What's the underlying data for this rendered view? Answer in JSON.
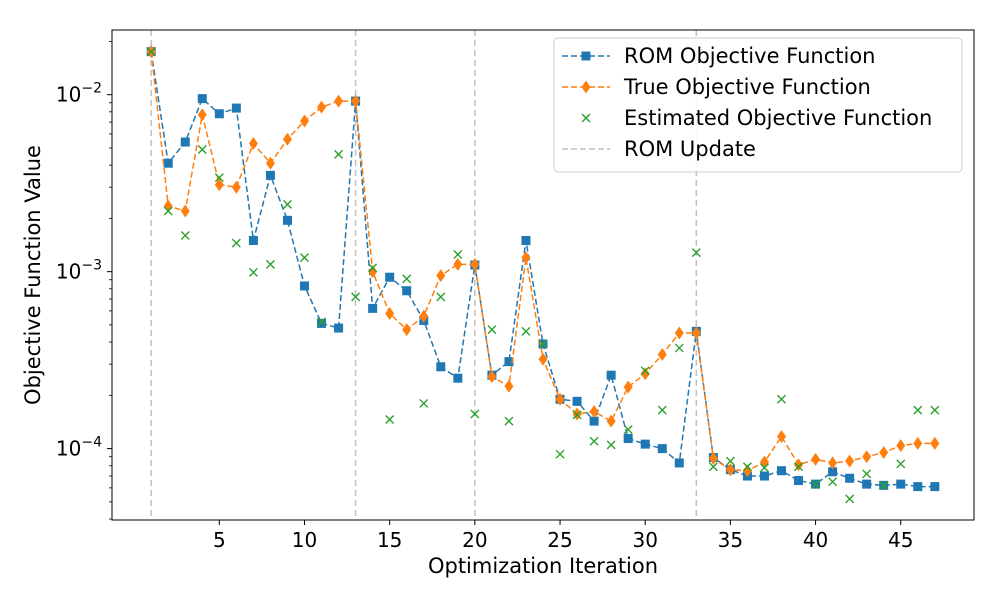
{
  "chart_data": {
    "type": "line",
    "title": "",
    "xlabel": "Optimization Iteration",
    "ylabel": "Objective Function Value",
    "yscale": "log",
    "xlim": [
      -1.3,
      49.3
    ],
    "ylim": [
      3.95e-05,
      0.0232
    ],
    "xticks": [
      5,
      10,
      15,
      20,
      25,
      30,
      35,
      40,
      45
    ],
    "xtick_labels": [
      "5",
      "10",
      "15",
      "20",
      "25",
      "30",
      "35",
      "40",
      "45"
    ],
    "yticks": [
      0.01,
      0.001,
      0.0001
    ],
    "ytick_labels": [
      {
        "base": "10",
        "exp": "−2"
      },
      {
        "base": "10",
        "exp": "−3"
      },
      {
        "base": "10",
        "exp": "−4"
      }
    ],
    "legend_position": "top-right",
    "colors": {
      "rom": "#1f77b4",
      "true": "#ff7f0e",
      "estimated": "#2ca02c",
      "update": "#c0c0c0"
    },
    "series": [
      {
        "name": "ROM Objective Function",
        "style": "dashed-line-square",
        "x": [
          1,
          2,
          3,
          4,
          5,
          6,
          7,
          8,
          9,
          10,
          11,
          12,
          13,
          14,
          15,
          16,
          17,
          18,
          19,
          20,
          21,
          22,
          23,
          24,
          25,
          26,
          27,
          28,
          29,
          30,
          31,
          32,
          33,
          34,
          35,
          36,
          37,
          38,
          39,
          40,
          41,
          42,
          43,
          44,
          45,
          46,
          47
        ],
        "values": [
          0.0175,
          0.0041,
          0.0054,
          0.0095,
          0.0078,
          0.0084,
          0.0015,
          0.0035,
          0.00195,
          0.00083,
          0.00051,
          0.00048,
          0.0092,
          0.00062,
          0.00093,
          0.00078,
          0.00053,
          0.00029,
          0.00025,
          0.00109,
          0.00026,
          0.00031,
          0.0015,
          0.00039,
          0.00019,
          0.000185,
          0.000143,
          0.00026,
          0.000114,
          0.000106,
          0.0001,
          8.3e-05,
          0.00046,
          8.9e-05,
          7.6e-05,
          7e-05,
          7e-05,
          7.5e-05,
          6.6e-05,
          6.3e-05,
          7.4e-05,
          6.8e-05,
          6.3e-05,
          6.2e-05,
          6.3e-05,
          6.1e-05,
          6.1e-05
        ]
      },
      {
        "name": "True Objective Function",
        "style": "dashed-line-diamond",
        "x": [
          1,
          2,
          3,
          4,
          5,
          6,
          7,
          8,
          9,
          10,
          11,
          12,
          13,
          14,
          15,
          16,
          17,
          18,
          19,
          20,
          21,
          22,
          23,
          24,
          25,
          26,
          27,
          28,
          29,
          30,
          31,
          32,
          33,
          34,
          35,
          36,
          37,
          38,
          39,
          40,
          41,
          42,
          43,
          44,
          45,
          46,
          47
        ],
        "values": [
          0.0175,
          0.00235,
          0.0022,
          0.0077,
          0.0031,
          0.003,
          0.0053,
          0.0041,
          0.0056,
          0.0071,
          0.0085,
          0.0092,
          0.0092,
          0.001,
          0.00058,
          0.00047,
          0.00056,
          0.00095,
          0.0011,
          0.0011,
          0.000255,
          0.000225,
          0.0012,
          0.00032,
          0.00019,
          0.000157,
          0.000162,
          0.000143,
          0.000223,
          0.000265,
          0.00034,
          0.00045,
          0.00045,
          8.8e-05,
          7.6e-05,
          7.5e-05,
          8.4e-05,
          0.000117,
          8.1e-05,
          8.7e-05,
          8.3e-05,
          8.5e-05,
          9e-05,
          9.5e-05,
          0.000104,
          0.000107,
          0.000107
        ]
      },
      {
        "name": "Estimated Objective Function",
        "style": "x-marker",
        "x": [
          1,
          2,
          3,
          4,
          5,
          6,
          7,
          8,
          9,
          10,
          11,
          12,
          13,
          14,
          15,
          16,
          17,
          18,
          19,
          20,
          21,
          22,
          23,
          24,
          25,
          26,
          27,
          28,
          29,
          30,
          31,
          32,
          33,
          34,
          35,
          36,
          37,
          38,
          39,
          40,
          41,
          42,
          43,
          44,
          45,
          46,
          47
        ],
        "values": [
          0.0175,
          0.0022,
          0.0016,
          0.0049,
          0.0034,
          0.00145,
          0.00099,
          0.0011,
          0.0024,
          0.0012,
          0.00052,
          0.0046,
          0.00072,
          0.00105,
          0.000146,
          0.00091,
          0.00018,
          0.00072,
          0.00125,
          0.000157,
          0.00047,
          0.000143,
          0.00046,
          0.00039,
          9.3e-05,
          0.000155,
          0.00011,
          0.000105,
          0.000128,
          0.000275,
          0.000165,
          0.00037,
          0.00128,
          7.9e-05,
          8.5e-05,
          7.9e-05,
          7.8e-05,
          0.00019,
          7.9e-05,
          6.3e-05,
          6.5e-05,
          5.2e-05,
          7.2e-05,
          6.2e-05,
          8.2e-05,
          0.000165,
          0.000165
        ]
      }
    ],
    "rom_updates": [
      1,
      13,
      20,
      33
    ],
    "rom_update_label": "ROM Update"
  }
}
